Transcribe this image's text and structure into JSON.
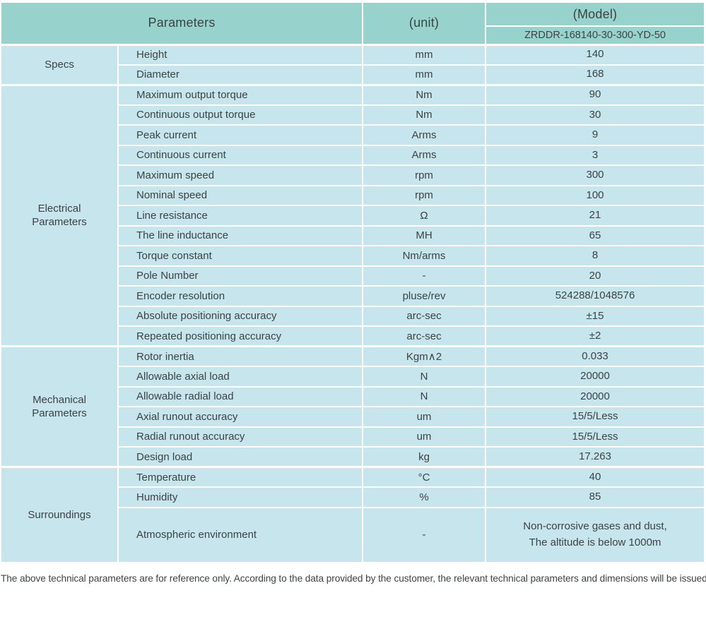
{
  "colors": {
    "header_bg": "#97d3cc",
    "body_bg": "#c6e5ec",
    "border": "#ffffff",
    "text": "#3d4343"
  },
  "header": {
    "parameters_label": "Parameters",
    "unit_label": "(unit)",
    "model_label": "(Model)",
    "model_value": "ZRDDR-168140-30-300-YD-50"
  },
  "sections": [
    {
      "name": "Specs",
      "rows": [
        {
          "param": "Height",
          "unit": "mm",
          "value": "140"
        },
        {
          "param": "Diameter",
          "unit": "mm",
          "value": "168"
        }
      ]
    },
    {
      "name": "Electrical\nParameters",
      "rows": [
        {
          "param": "Maximum output torque",
          "unit": "Nm",
          "value": "90"
        },
        {
          "param": "Continuous output torque",
          "unit": "Nm",
          "value": "30"
        },
        {
          "param": "Peak current",
          "unit": "Arms",
          "value": "9"
        },
        {
          "param": "Continuous current",
          "unit": "Arms",
          "value": "3"
        },
        {
          "param": "Maximum speed",
          "unit": "rpm",
          "value": "300"
        },
        {
          "param": "Nominal speed",
          "unit": "rpm",
          "value": "100"
        },
        {
          "param": "Line resistance",
          "unit": "Ω",
          "value": "21"
        },
        {
          "param": "The line inductance",
          "unit": "MH",
          "value": "65"
        },
        {
          "param": "Torque constant",
          "unit": "Nm/arms",
          "value": "8"
        },
        {
          "param": "Pole Number",
          "unit": "-",
          "value": "20"
        },
        {
          "param": "Encoder resolution",
          "unit": "pluse/rev",
          "value": "524288/1048576"
        },
        {
          "param": "Absolute positioning accuracy",
          "unit": "arc-sec",
          "value": "±15"
        },
        {
          "param": "Repeated positioning accuracy",
          "unit": "arc-sec",
          "value": "±2"
        }
      ]
    },
    {
      "name": "Mechanical\nParameters",
      "rows": [
        {
          "param": "Rotor inertia",
          "unit": "Kgm∧2",
          "value": "0.033"
        },
        {
          "param": "Allowable axial load",
          "unit": "N",
          "value": "20000"
        },
        {
          "param": "Allowable radial load",
          "unit": "N",
          "value": "20000"
        },
        {
          "param": "Axial runout accuracy",
          "unit": "um",
          "value": "15/5/Less"
        },
        {
          "param": "Radial runout accuracy",
          "unit": "um",
          "value": "15/5/Less"
        },
        {
          "param": "Design load",
          "unit": "kg",
          "value": "17.263"
        }
      ]
    },
    {
      "name": "Surroundings",
      "rows": [
        {
          "param": "Temperature",
          "unit": "°C",
          "value": "40"
        },
        {
          "param": "Humidity",
          "unit": "%",
          "value": "85"
        },
        {
          "param": "Atmospheric environment",
          "unit": "-",
          "value": "Non-corrosive gases and dust,\nThe altitude is below 1000m"
        }
      ]
    }
  ],
  "footer": {
    "note": "The above technical parameters are for reference only. According to the data provided by the customer, the relevant technical parameters and dimensions will be issued."
  }
}
